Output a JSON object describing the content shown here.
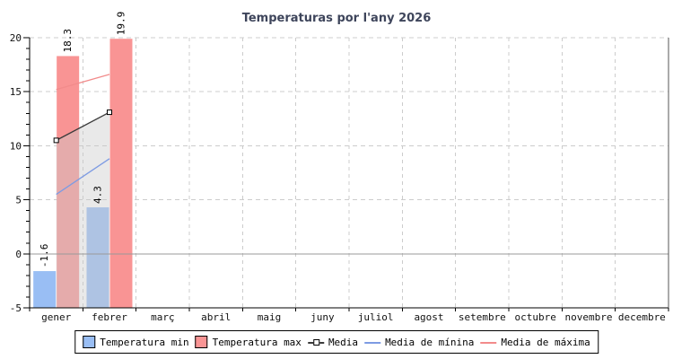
{
  "chart_data": {
    "type": "bar",
    "title": "Temperaturas por l'any 2026",
    "categories": [
      "gener",
      "febrer",
      "març",
      "abril",
      "maig",
      "juny",
      "juliol",
      "agost",
      "setembre",
      "octubre",
      "novembre",
      "decembre"
    ],
    "bar_series": [
      {
        "name": "Temperatura min",
        "color": "#99BEF4",
        "values": [
          -1.6,
          4.3,
          null,
          null,
          null,
          null,
          null,
          null,
          null,
          null,
          null,
          null
        ]
      },
      {
        "name": "Temperatura max",
        "color": "#F99494",
        "values": [
          18.3,
          19.9,
          null,
          null,
          null,
          null,
          null,
          null,
          null,
          null,
          null,
          null
        ]
      }
    ],
    "line_series": [
      {
        "name": "Media",
        "color": "#3B3B3B",
        "marker": "square",
        "values": [
          10.5,
          13.1,
          null,
          null,
          null,
          null,
          null,
          null,
          null,
          null,
          null,
          null
        ]
      },
      {
        "name": "Media de mínina",
        "color": "#7D9BE3",
        "marker": "none",
        "values": [
          5.5,
          8.8,
          null,
          null,
          null,
          null,
          null,
          null,
          null,
          null,
          null,
          null
        ]
      },
      {
        "name": "Media de máxima",
        "color": "#F28B8B",
        "marker": "none",
        "values": [
          15.2,
          16.6,
          null,
          null,
          null,
          null,
          null,
          null,
          null,
          null,
          null,
          null
        ]
      }
    ],
    "bar_value_labels": [
      "-1.6",
      "4.3",
      "18.3",
      "19.9"
    ],
    "shade": {
      "follows": "Media",
      "base": -5,
      "from_category": 0,
      "to_category": 1,
      "color": "rgba(202,202,202,0.42)"
    },
    "ylim": [
      -5,
      20
    ],
    "y_major_ticks": [
      20,
      15,
      10,
      5,
      0,
      -5
    ],
    "y_minor_step": 1,
    "bar_base": -5,
    "zero_line_value": 0,
    "grid": "dashed",
    "legend_position": "bottom"
  },
  "styles": {
    "title_color": "#3E455B",
    "grid_color": "#CCCCCC",
    "zero_line_color": "#999999",
    "axis_color": "#000000",
    "right_border_color": "#555555",
    "tick_label_color": "#111111",
    "bar_label_color": "#000000",
    "plot_bg": "#FFFFFF"
  }
}
